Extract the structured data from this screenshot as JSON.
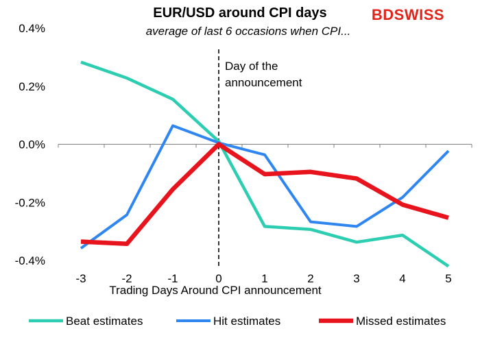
{
  "brand": "BDSWISS",
  "brand_color": "#e2231a",
  "chart_data": {
    "type": "line",
    "title": "EUR/USD around CPI days",
    "subtitle": "average of last 6 occasions when CPI...",
    "xlabel": "Trading Days Around  CPI announcement",
    "ylabel": "",
    "x": [
      -3,
      -2,
      -1,
      0,
      1,
      2,
      3,
      4,
      5
    ],
    "x_tick_labels": [
      "-3",
      "-2",
      "-1",
      "0",
      "1",
      "2",
      "3",
      "4",
      "5"
    ],
    "ylim": [
      -0.4,
      0.4
    ],
    "y_ticks": [
      -0.4,
      -0.2,
      0.0,
      0.2,
      0.4
    ],
    "y_tick_labels": [
      "-0.4%",
      "-0.2%",
      "0.0%",
      "0.2%",
      "0.4%"
    ],
    "grid": false,
    "legend_position": "bottom",
    "vline": {
      "x": 0,
      "label_line1": "Day of the",
      "label_line2": "announcement"
    },
    "series": [
      {
        "name": "Beat estimates",
        "color": "#2ccdb0",
        "values": [
          0.283,
          0.228,
          0.155,
          0.01,
          -0.283,
          -0.293,
          -0.337,
          -0.313,
          -0.42
        ]
      },
      {
        "name": "Hit estimates",
        "color": "#2f86f0",
        "values": [
          -0.358,
          -0.243,
          0.064,
          0.005,
          -0.036,
          -0.267,
          -0.283,
          -0.183,
          -0.023
        ]
      },
      {
        "name": "Missed estimates",
        "color": "#e8141d",
        "values": [
          -0.335,
          -0.343,
          -0.155,
          0.0,
          -0.103,
          -0.095,
          -0.118,
          -0.208,
          -0.253
        ]
      }
    ]
  }
}
